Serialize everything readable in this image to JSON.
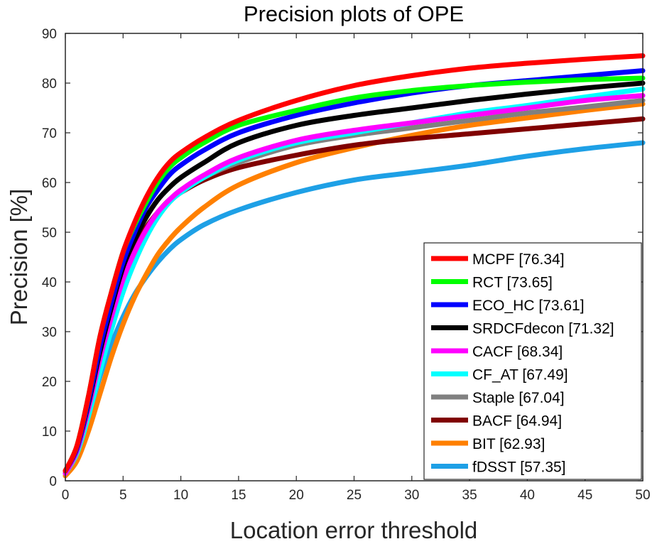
{
  "chart_data": {
    "type": "line",
    "title": "Precision plots of OPE",
    "xlabel": "Location error threshold",
    "ylabel": "Precision [%]",
    "xlim": [
      0,
      50
    ],
    "ylim": [
      0,
      90
    ],
    "xticks": [
      0,
      5,
      10,
      15,
      20,
      25,
      30,
      35,
      40,
      45,
      50
    ],
    "yticks": [
      0,
      10,
      20,
      30,
      40,
      50,
      60,
      70,
      80,
      90
    ],
    "grid": false,
    "legend_position": "bottom-right",
    "x": [
      0,
      1,
      2,
      3,
      4,
      5,
      6,
      7,
      8,
      9,
      10,
      12,
      15,
      20,
      25,
      30,
      35,
      40,
      45,
      50
    ],
    "series": [
      {
        "name": "MCPF",
        "legend_label": "MCPF [76.34]",
        "color": "#ff0000",
        "values": [
          2,
          7,
          17,
          29,
          38,
          46,
          52,
          57,
          61,
          64,
          66,
          69,
          72.5,
          76.5,
          79.5,
          81.5,
          83,
          84,
          84.8,
          85.5
        ]
      },
      {
        "name": "RCT",
        "legend_label": "RCT [73.65]",
        "color": "#00ff00",
        "values": [
          2,
          7,
          17,
          29,
          38,
          46,
          51.5,
          56,
          60,
          63,
          65,
          68,
          71.5,
          74.5,
          77,
          78.5,
          79.5,
          80.2,
          80.7,
          81
        ]
      },
      {
        "name": "ECO_HC",
        "legend_label": "ECO_HC [73.61]",
        "color": "#0000ff",
        "values": [
          2,
          6.5,
          16,
          27,
          36,
          44,
          50,
          55,
          58.5,
          61.5,
          63.5,
          66.5,
          70,
          73.5,
          76,
          78,
          79.5,
          80.5,
          81.5,
          82.5
        ]
      },
      {
        "name": "SRDCFdecon",
        "legend_label": "SRDCFdecon [71.32]",
        "color": "#000000",
        "values": [
          2,
          6.5,
          15.5,
          26,
          35,
          43,
          48.5,
          53,
          56.5,
          59,
          61,
          64,
          68,
          71.5,
          73.5,
          75,
          76.5,
          77.8,
          79,
          80
        ]
      },
      {
        "name": "CACF",
        "legend_label": "CACF [68.34]",
        "color": "#ff00ff",
        "values": [
          1.5,
          6,
          14.5,
          24.5,
          33,
          40.5,
          46,
          50.5,
          54,
          56.5,
          58.5,
          61.5,
          65,
          68.5,
          70.5,
          72,
          73.5,
          75,
          76.5,
          77.5
        ]
      },
      {
        "name": "CF_AT",
        "legend_label": "CF_AT [67.49]",
        "color": "#00ffff",
        "values": [
          1.5,
          5.5,
          13,
          22,
          30.5,
          38,
          44,
          49,
          53,
          56,
          58,
          61,
          64.5,
          68,
          70,
          72,
          74,
          75.5,
          77.2,
          78.8
        ]
      },
      {
        "name": "Staple",
        "legend_label": "Staple [67.04]",
        "color": "#808080",
        "values": [
          1.5,
          5.5,
          13,
          22,
          30.5,
          38,
          44,
          49,
          53,
          56,
          58,
          61,
          64,
          67.5,
          69.5,
          71,
          72.5,
          74,
          75.2,
          76.5
        ]
      },
      {
        "name": "BACF",
        "legend_label": "BACF [64.94]",
        "color": "#800000",
        "values": [
          1.5,
          6,
          15,
          25.5,
          34,
          41.5,
          47,
          51,
          54,
          56.5,
          58,
          60.5,
          63,
          65.5,
          67.5,
          68.8,
          69.8,
          70.8,
          71.8,
          72.8
        ]
      },
      {
        "name": "BIT",
        "legend_label": "BIT [62.93]",
        "color": "#ff8000",
        "values": [
          1,
          4,
          10,
          17.5,
          25,
          31.5,
          37,
          41.5,
          45.5,
          48.5,
          51,
          55,
          59.5,
          64,
          67,
          69.5,
          71.5,
          73,
          74.5,
          75.8
        ]
      },
      {
        "name": "fDSST",
        "legend_label": "fDSST [57.35]",
        "color": "#1ea0e6",
        "values": [
          1.5,
          5.5,
          13,
          21,
          27.5,
          33,
          37.5,
          41,
          44,
          46.5,
          48.5,
          51.5,
          54.5,
          58,
          60.5,
          62,
          63.5,
          65.3,
          66.8,
          68
        ]
      }
    ]
  }
}
